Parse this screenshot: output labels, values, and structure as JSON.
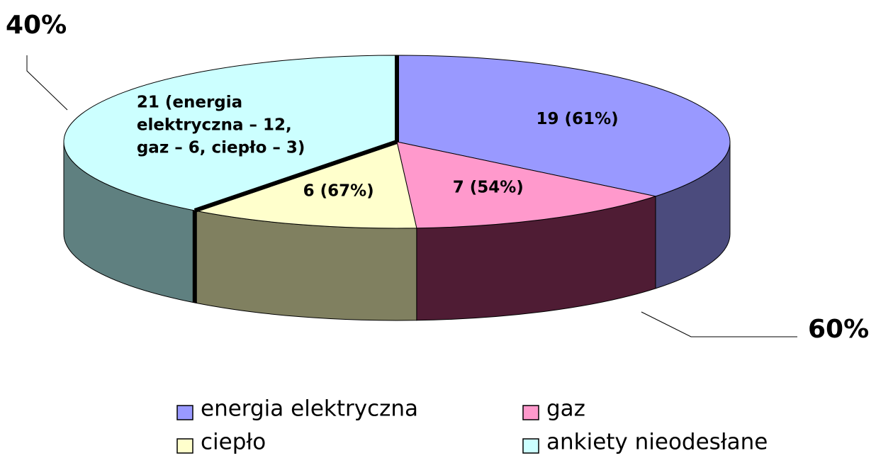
{
  "chart_data": {
    "type": "pie3d",
    "categories": [
      "energia elektryczna",
      "gaz",
      "ciepło",
      "ankiety nieodesłane"
    ],
    "values": [
      19,
      7,
      6,
      21
    ],
    "value_labels": [
      "19 (61%)",
      "7 (54%)",
      "6 (67%)",
      [
        "21 (energia",
        "elektryczna – 12,",
        "gaz – 6, ciepło – 3)"
      ]
    ],
    "colors": [
      "#9999ff",
      "#ff99cc",
      "#ffffcc",
      "#ccffff"
    ],
    "side_colors": [
      "#4b4b7d",
      "#4f1c34",
      "#808060",
      "#5f8080"
    ],
    "annotations": [
      "40%",
      "60%"
    ],
    "legend": "bottom"
  }
}
